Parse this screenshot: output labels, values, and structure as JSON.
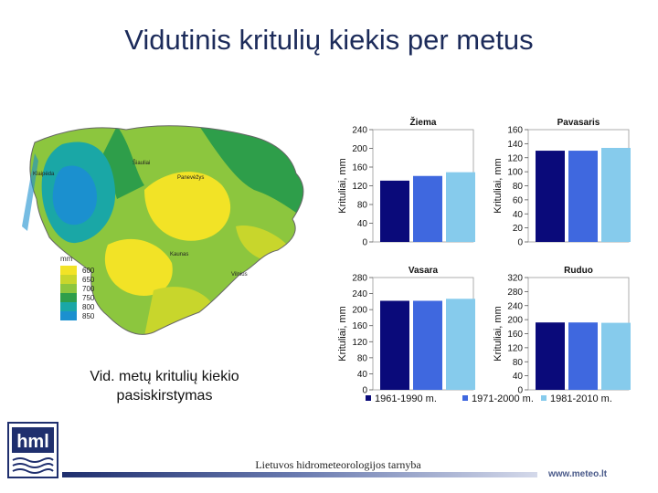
{
  "slide": {
    "title": "Vidutinis kritulių kiekis per metus",
    "caption_line1": "Vid. metų kritulių kiekio",
    "caption_line2": "pasiskirstymas",
    "footer": "Lietuvos hidrometeorologijos tarnyba",
    "url": "www.meteo.lt",
    "logo_text": "hml"
  },
  "map": {
    "legend_unit": "mm",
    "legend": [
      {
        "label": "600",
        "color": "#f2e326"
      },
      {
        "label": "650",
        "color": "#c8d62c"
      },
      {
        "label": "700",
        "color": "#8cc63e"
      },
      {
        "label": "750",
        "color": "#2e9e4a"
      },
      {
        "label": "800",
        "color": "#1aa7a6"
      },
      {
        "label": "850",
        "color": "#1b90cf"
      }
    ],
    "cities": [
      "Klaipėda",
      "Šiauliai",
      "Panevėžys",
      "Kaunas",
      "Vilnius"
    ]
  },
  "colors": {
    "series1": "#0a0a7a",
    "series2": "#3f68df",
    "series3": "#86cbec"
  },
  "chart_data": [
    {
      "type": "bar",
      "title": "Žiema",
      "ylabel": "Krituliai, mm",
      "ylim": [
        0,
        240
      ],
      "yticks": [
        0,
        40,
        80,
        120,
        160,
        200,
        240
      ],
      "series": [
        {
          "name": "1961-1990 m.",
          "values": [
            131
          ]
        },
        {
          "name": "1971-2000 m.",
          "values": [
            141
          ]
        },
        {
          "name": "1981-2010 m.",
          "values": [
            149
          ]
        }
      ]
    },
    {
      "type": "bar",
      "title": "Pavasaris",
      "ylabel": "Krituliai, mm",
      "ylim": [
        0,
        160
      ],
      "yticks": [
        0,
        20,
        40,
        60,
        80,
        100,
        120,
        140,
        160
      ],
      "series": [
        {
          "name": "1961-1990 m.",
          "values": [
            130
          ]
        },
        {
          "name": "1971-2000 m.",
          "values": [
            130
          ]
        },
        {
          "name": "1981-2010 m.",
          "values": [
            134
          ]
        }
      ]
    },
    {
      "type": "bar",
      "title": "Vasara",
      "ylabel": "Krituliai, mm",
      "ylim": [
        0,
        280
      ],
      "yticks": [
        0,
        40,
        80,
        120,
        160,
        200,
        240,
        280
      ],
      "series": [
        {
          "name": "1961-1990 m.",
          "values": [
            222
          ]
        },
        {
          "name": "1971-2000 m.",
          "values": [
            222
          ]
        },
        {
          "name": "1981-2010 m.",
          "values": [
            227
          ]
        }
      ]
    },
    {
      "type": "bar",
      "title": "Ruduo",
      "ylabel": "Krituliai, mm",
      "ylim": [
        0,
        320
      ],
      "yticks": [
        0,
        40,
        80,
        120,
        160,
        200,
        240,
        280,
        320
      ],
      "series": [
        {
          "name": "1961-1990 m.",
          "values": [
            192
          ]
        },
        {
          "name": "1971-2000 m.",
          "values": [
            192
          ]
        },
        {
          "name": "1981-2010 m.",
          "values": [
            191
          ]
        }
      ]
    }
  ]
}
